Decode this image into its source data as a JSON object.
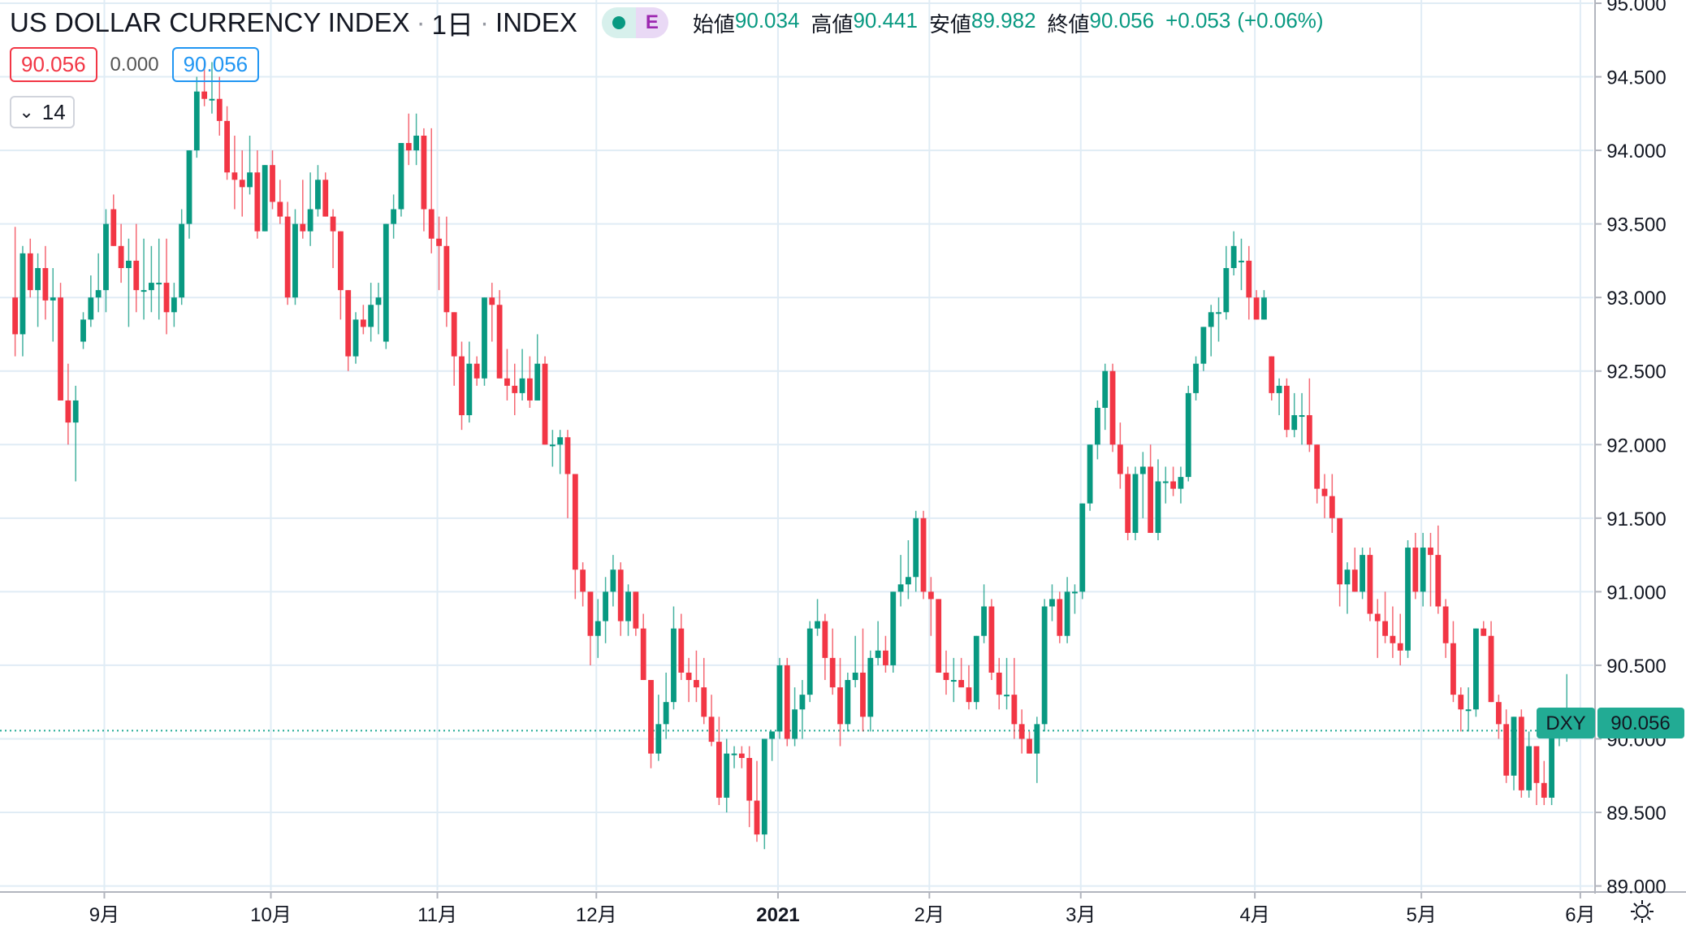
{
  "header": {
    "symbol_name": "US DOLLAR CURRENCY INDEX",
    "interval": "1日",
    "exchange": "INDEX",
    "sep": "·",
    "event_badge": "E",
    "open_label": "始値",
    "open_value": "90.034",
    "high_label": "高値",
    "high_value": "90.441",
    "low_label": "安値",
    "low_value": "89.982",
    "close_label": "終値",
    "close_value": "90.056",
    "change": "+0.053",
    "change_pct": "(+0.06%)"
  },
  "quote": {
    "bid": "90.056",
    "spread": "0.000",
    "ask": "90.056"
  },
  "indicators_toggle": {
    "count": "14",
    "chevron": "chevron-down-icon"
  },
  "price_label": {
    "ticker": "DXY",
    "value": "90.056"
  },
  "colors": {
    "up": "#089981",
    "down": "#f23645",
    "grid": "#e0ecf5",
    "accent": "#22ab94"
  },
  "chart_data": {
    "type": "candlestick",
    "title": "US DOLLAR CURRENCY INDEX",
    "interval": "1日",
    "y_axis": {
      "range": [
        88.97,
        95.0
      ],
      "ticks": [
        "95.000",
        "94.500",
        "94.000",
        "93.500",
        "93.000",
        "92.500",
        "92.000",
        "91.500",
        "91.000",
        "90.500",
        "90.000",
        "89.500",
        "89.000"
      ]
    },
    "x_axis": {
      "start_date": "2020-08-12",
      "ticks": [
        {
          "label": "9月",
          "date": "2020-09-01"
        },
        {
          "label": "10月",
          "date": "2020-10-01"
        },
        {
          "label": "11月",
          "date": "2020-11-02"
        },
        {
          "label": "12月",
          "date": "2020-12-01"
        },
        {
          "label": "2021",
          "date": "2021-01-04",
          "bold": true
        },
        {
          "label": "2月",
          "date": "2021-02-01"
        },
        {
          "label": "3月",
          "date": "2021-03-01"
        },
        {
          "label": "4月",
          "date": "2021-04-01"
        },
        {
          "label": "5月",
          "date": "2021-05-03"
        },
        {
          "label": "6月",
          "date": "2021-06-01"
        }
      ]
    },
    "last_price": 90.056,
    "candles_ohlc": [
      [
        93.0,
        93.48,
        92.6,
        92.75
      ],
      [
        92.75,
        93.35,
        92.6,
        93.3
      ],
      [
        93.3,
        93.4,
        93.0,
        93.05
      ],
      [
        93.05,
        93.3,
        92.8,
        93.2
      ],
      [
        93.2,
        93.35,
        92.85,
        92.98
      ],
      [
        92.98,
        93.2,
        92.7,
        93.0
      ],
      [
        93.0,
        93.1,
        92.3,
        92.3
      ],
      [
        92.3,
        92.55,
        92.0,
        92.15
      ],
      [
        92.15,
        92.4,
        91.75,
        92.3
      ],
      [
        92.7,
        92.9,
        92.65,
        92.85
      ],
      [
        92.85,
        93.15,
        92.8,
        93.0
      ],
      [
        93.0,
        93.3,
        92.9,
        93.05
      ],
      [
        93.05,
        93.6,
        92.9,
        93.5
      ],
      [
        93.6,
        93.7,
        93.35,
        93.35
      ],
      [
        93.35,
        93.5,
        93.1,
        93.2
      ],
      [
        93.2,
        93.4,
        92.8,
        93.25
      ],
      [
        93.25,
        93.5,
        92.9,
        93.05
      ],
      [
        93.05,
        93.4,
        92.85,
        93.05
      ],
      [
        93.05,
        93.35,
        92.9,
        93.1
      ],
      [
        93.1,
        93.4,
        92.85,
        93.1
      ],
      [
        93.1,
        93.4,
        92.75,
        92.9
      ],
      [
        92.9,
        93.1,
        92.8,
        93.0
      ],
      [
        93.0,
        93.6,
        92.95,
        93.5
      ],
      [
        93.5,
        94.0,
        93.4,
        94.0
      ],
      [
        94.0,
        94.5,
        93.95,
        94.4
      ],
      [
        94.4,
        94.6,
        94.3,
        94.35
      ],
      [
        94.35,
        94.6,
        94.25,
        94.35
      ],
      [
        94.35,
        94.5,
        94.1,
        94.2
      ],
      [
        94.2,
        94.3,
        93.8,
        93.85
      ],
      [
        93.85,
        94.1,
        93.6,
        93.8
      ],
      [
        93.8,
        94.0,
        93.55,
        93.75
      ],
      [
        93.75,
        94.1,
        93.7,
        93.85
      ],
      [
        93.85,
        94.0,
        93.4,
        93.45
      ],
      [
        93.45,
        93.9,
        93.45,
        93.9
      ],
      [
        93.9,
        94.0,
        93.6,
        93.65
      ],
      [
        93.65,
        93.8,
        93.5,
        93.55
      ],
      [
        93.55,
        93.65,
        92.95,
        93.0
      ],
      [
        93.0,
        93.6,
        92.95,
        93.5
      ],
      [
        93.5,
        93.8,
        93.4,
        93.45
      ],
      [
        93.45,
        93.85,
        93.35,
        93.6
      ],
      [
        93.6,
        93.9,
        93.55,
        93.8
      ],
      [
        93.8,
        93.85,
        93.55,
        93.55
      ],
      [
        93.55,
        93.6,
        93.2,
        93.45
      ],
      [
        93.45,
        93.45,
        92.85,
        93.05
      ],
      [
        93.05,
        93.05,
        92.5,
        92.6
      ],
      [
        92.6,
        92.9,
        92.55,
        92.85
      ],
      [
        92.85,
        92.95,
        92.75,
        92.8
      ],
      [
        92.8,
        93.1,
        92.7,
        92.95
      ],
      [
        92.95,
        93.1,
        92.75,
        93.0
      ],
      [
        92.7,
        93.5,
        92.65,
        93.5
      ],
      [
        93.5,
        93.7,
        93.4,
        93.6
      ],
      [
        93.6,
        94.05,
        93.55,
        94.05
      ],
      [
        94.05,
        94.25,
        93.9,
        94.0
      ],
      [
        94.0,
        94.25,
        93.9,
        94.1
      ],
      [
        94.1,
        94.15,
        93.45,
        93.6
      ],
      [
        93.6,
        94.15,
        93.3,
        93.4
      ],
      [
        93.4,
        93.55,
        93.05,
        93.35
      ],
      [
        93.35,
        93.55,
        92.8,
        92.9
      ],
      [
        92.9,
        92.9,
        92.4,
        92.6
      ],
      [
        92.6,
        92.7,
        92.1,
        92.2
      ],
      [
        92.2,
        92.7,
        92.15,
        92.55
      ],
      [
        92.55,
        92.6,
        92.4,
        92.45
      ],
      [
        92.45,
        93.0,
        92.4,
        93.0
      ],
      [
        93.0,
        93.1,
        92.7,
        92.95
      ],
      [
        92.95,
        93.05,
        92.45,
        92.45
      ],
      [
        92.45,
        92.65,
        92.3,
        92.4
      ],
      [
        92.4,
        92.55,
        92.2,
        92.35
      ],
      [
        92.35,
        92.65,
        92.3,
        92.45
      ],
      [
        92.45,
        92.6,
        92.25,
        92.3
      ],
      [
        92.3,
        92.75,
        92.3,
        92.55
      ],
      [
        92.55,
        92.6,
        92.0,
        92.0
      ],
      [
        92.0,
        92.1,
        91.85,
        92.0
      ],
      [
        92.0,
        92.1,
        91.8,
        92.05
      ],
      [
        92.05,
        92.1,
        91.5,
        91.8
      ],
      [
        91.8,
        91.8,
        90.95,
        91.15
      ],
      [
        91.15,
        91.2,
        90.9,
        91.0
      ],
      [
        91.0,
        91.0,
        90.5,
        90.7
      ],
      [
        90.7,
        90.95,
        90.55,
        90.8
      ],
      [
        90.8,
        91.1,
        90.65,
        91.0
      ],
      [
        91.0,
        91.25,
        90.9,
        91.15
      ],
      [
        91.15,
        91.2,
        90.7,
        90.8
      ],
      [
        90.8,
        91.05,
        90.7,
        91.0
      ],
      [
        91.0,
        91.0,
        90.7,
        90.75
      ],
      [
        90.75,
        90.85,
        90.4,
        90.4
      ],
      [
        90.4,
        90.4,
        89.8,
        89.9
      ],
      [
        89.9,
        90.3,
        89.85,
        90.1
      ],
      [
        90.1,
        90.45,
        90.0,
        90.25
      ],
      [
        90.25,
        90.9,
        90.2,
        90.75
      ],
      [
        90.75,
        90.85,
        90.4,
        90.45
      ],
      [
        90.45,
        90.55,
        90.25,
        90.4
      ],
      [
        90.4,
        90.6,
        90.25,
        90.35
      ],
      [
        90.35,
        90.55,
        90.1,
        90.15
      ],
      [
        90.15,
        90.3,
        89.95,
        89.98
      ],
      [
        89.98,
        90.15,
        89.55,
        89.6
      ],
      [
        89.6,
        90.0,
        89.5,
        89.9
      ],
      [
        89.9,
        89.95,
        89.8,
        89.9
      ],
      [
        89.9,
        89.95,
        89.8,
        89.87
      ],
      [
        89.87,
        89.95,
        89.4,
        89.58
      ],
      [
        89.58,
        89.85,
        89.3,
        89.35
      ],
      [
        89.35,
        90.0,
        89.25,
        90.0
      ],
      [
        90.0,
        90.05,
        89.85,
        90.05
      ],
      [
        90.05,
        90.55,
        90.0,
        90.5
      ],
      [
        90.5,
        90.55,
        89.95,
        90.0
      ],
      [
        90.0,
        90.35,
        89.95,
        90.2
      ],
      [
        90.2,
        90.4,
        90.0,
        90.3
      ],
      [
        90.3,
        90.8,
        90.25,
        90.75
      ],
      [
        90.75,
        90.95,
        90.7,
        90.8
      ],
      [
        90.8,
        90.85,
        90.4,
        90.55
      ],
      [
        90.55,
        90.75,
        90.3,
        90.35
      ],
      [
        90.35,
        90.55,
        89.95,
        90.1
      ],
      [
        90.1,
        90.45,
        90.05,
        90.4
      ],
      [
        90.4,
        90.7,
        90.35,
        90.45
      ],
      [
        90.45,
        90.75,
        90.05,
        90.15
      ],
      [
        90.15,
        90.6,
        90.05,
        90.55
      ],
      [
        90.55,
        90.8,
        90.5,
        90.6
      ],
      [
        90.6,
        90.7,
        90.45,
        90.5
      ],
      [
        90.5,
        91.0,
        90.45,
        91.0
      ],
      [
        91.0,
        91.25,
        90.9,
        91.05
      ],
      [
        91.05,
        91.35,
        90.95,
        91.1
      ],
      [
        91.1,
        91.55,
        91.0,
        91.5
      ],
      [
        91.5,
        91.55,
        90.95,
        91.0
      ],
      [
        91.0,
        91.1,
        90.7,
        90.95
      ],
      [
        90.95,
        90.95,
        90.45,
        90.45
      ],
      [
        90.45,
        90.6,
        90.3,
        90.4
      ],
      [
        90.4,
        90.55,
        90.25,
        90.4
      ],
      [
        90.4,
        90.55,
        90.35,
        90.35
      ],
      [
        90.35,
        90.5,
        90.2,
        90.25
      ],
      [
        90.25,
        90.7,
        90.2,
        90.7
      ],
      [
        90.7,
        91.05,
        90.65,
        90.9
      ],
      [
        90.9,
        90.95,
        90.4,
        90.45
      ],
      [
        90.45,
        90.55,
        90.2,
        90.3
      ],
      [
        90.3,
        90.55,
        90.2,
        90.3
      ],
      [
        90.3,
        90.55,
        90.0,
        90.1
      ],
      [
        90.1,
        90.2,
        89.9,
        90.0
      ],
      [
        90.0,
        90.05,
        89.9,
        89.9
      ],
      [
        89.9,
        90.15,
        89.7,
        90.1
      ],
      [
        90.1,
        90.95,
        90.05,
        90.9
      ],
      [
        90.9,
        91.05,
        90.8,
        90.95
      ],
      [
        90.95,
        91.0,
        90.65,
        90.7
      ],
      [
        90.7,
        91.1,
        90.65,
        91.0
      ],
      [
        91.0,
        91.05,
        90.85,
        91.0
      ],
      [
        91.0,
        91.6,
        90.95,
        91.6
      ],
      [
        91.6,
        92.0,
        91.55,
        92.0
      ],
      [
        92.0,
        92.3,
        91.9,
        92.25
      ],
      [
        92.25,
        92.55,
        92.1,
        92.5
      ],
      [
        92.5,
        92.55,
        91.95,
        92.0
      ],
      [
        92.0,
        92.15,
        91.7,
        91.8
      ],
      [
        91.8,
        91.85,
        91.35,
        91.4
      ],
      [
        91.4,
        91.85,
        91.35,
        91.8
      ],
      [
        91.8,
        91.95,
        91.5,
        91.85
      ],
      [
        91.85,
        92.0,
        91.4,
        91.4
      ],
      [
        91.4,
        91.9,
        91.35,
        91.75
      ],
      [
        91.75,
        91.85,
        91.6,
        91.75
      ],
      [
        91.75,
        91.85,
        91.65,
        91.7
      ],
      [
        91.7,
        91.85,
        91.6,
        91.78
      ],
      [
        91.78,
        92.4,
        91.75,
        92.35
      ],
      [
        92.35,
        92.6,
        92.3,
        92.55
      ],
      [
        92.55,
        92.8,
        92.5,
        92.8
      ],
      [
        92.8,
        92.95,
        92.6,
        92.9
      ],
      [
        92.9,
        93.0,
        92.7,
        92.9
      ],
      [
        92.9,
        93.35,
        92.85,
        93.2
      ],
      [
        93.2,
        93.45,
        93.15,
        93.35
      ],
      [
        93.25,
        93.4,
        93.05,
        93.25
      ],
      [
        93.25,
        93.35,
        92.85,
        93.0
      ],
      [
        93.0,
        93.05,
        92.85,
        92.85
      ],
      [
        92.85,
        93.05,
        92.85,
        93.0
      ],
      [
        92.6,
        92.6,
        92.3,
        92.35
      ],
      [
        92.35,
        92.45,
        92.2,
        92.4
      ],
      [
        92.4,
        92.45,
        92.05,
        92.1
      ],
      [
        92.1,
        92.35,
        92.05,
        92.2
      ],
      [
        92.2,
        92.35,
        92.0,
        92.2
      ],
      [
        92.2,
        92.45,
        91.95,
        92.0
      ],
      [
        92.0,
        92.0,
        91.6,
        91.7
      ],
      [
        91.7,
        91.8,
        91.5,
        91.65
      ],
      [
        91.65,
        91.8,
        91.4,
        91.5
      ],
      [
        91.5,
        91.5,
        90.9,
        91.05
      ],
      [
        91.05,
        91.2,
        90.85,
        91.15
      ],
      [
        91.15,
        91.3,
        91.0,
        91.0
      ],
      [
        91.0,
        91.3,
        90.95,
        91.25
      ],
      [
        91.25,
        91.3,
        90.8,
        90.85
      ],
      [
        90.85,
        90.95,
        90.55,
        90.8
      ],
      [
        90.8,
        91.0,
        90.65,
        90.7
      ],
      [
        90.7,
        90.9,
        90.55,
        90.65
      ],
      [
        90.65,
        90.85,
        90.5,
        90.6
      ],
      [
        90.6,
        91.35,
        90.55,
        91.3
      ],
      [
        91.3,
        91.4,
        90.95,
        91.0
      ],
      [
        91.0,
        91.4,
        90.9,
        91.3
      ],
      [
        91.3,
        91.4,
        90.9,
        91.25
      ],
      [
        91.25,
        91.45,
        90.85,
        90.9
      ],
      [
        90.9,
        90.95,
        90.55,
        90.65
      ],
      [
        90.65,
        90.8,
        90.25,
        90.3
      ],
      [
        90.3,
        90.35,
        90.05,
        90.2
      ],
      [
        90.2,
        90.35,
        90.05,
        90.2
      ],
      [
        90.2,
        90.75,
        90.15,
        90.75
      ],
      [
        90.75,
        90.8,
        90.7,
        90.7
      ],
      [
        90.7,
        90.8,
        90.25,
        90.25
      ],
      [
        90.25,
        90.3,
        90.0,
        90.1
      ],
      [
        90.1,
        90.2,
        89.7,
        89.75
      ],
      [
        89.75,
        90.15,
        89.65,
        90.15
      ],
      [
        90.15,
        90.2,
        89.6,
        89.65
      ],
      [
        89.65,
        90.05,
        89.6,
        89.95
      ],
      [
        89.95,
        89.95,
        89.55,
        89.7
      ],
      [
        89.7,
        89.85,
        89.55,
        89.6
      ],
      [
        89.6,
        90.05,
        89.55,
        90.02
      ],
      [
        90.02,
        90.05,
        89.95,
        90.02
      ],
      [
        90.03,
        90.44,
        89.98,
        90.06
      ]
    ]
  }
}
